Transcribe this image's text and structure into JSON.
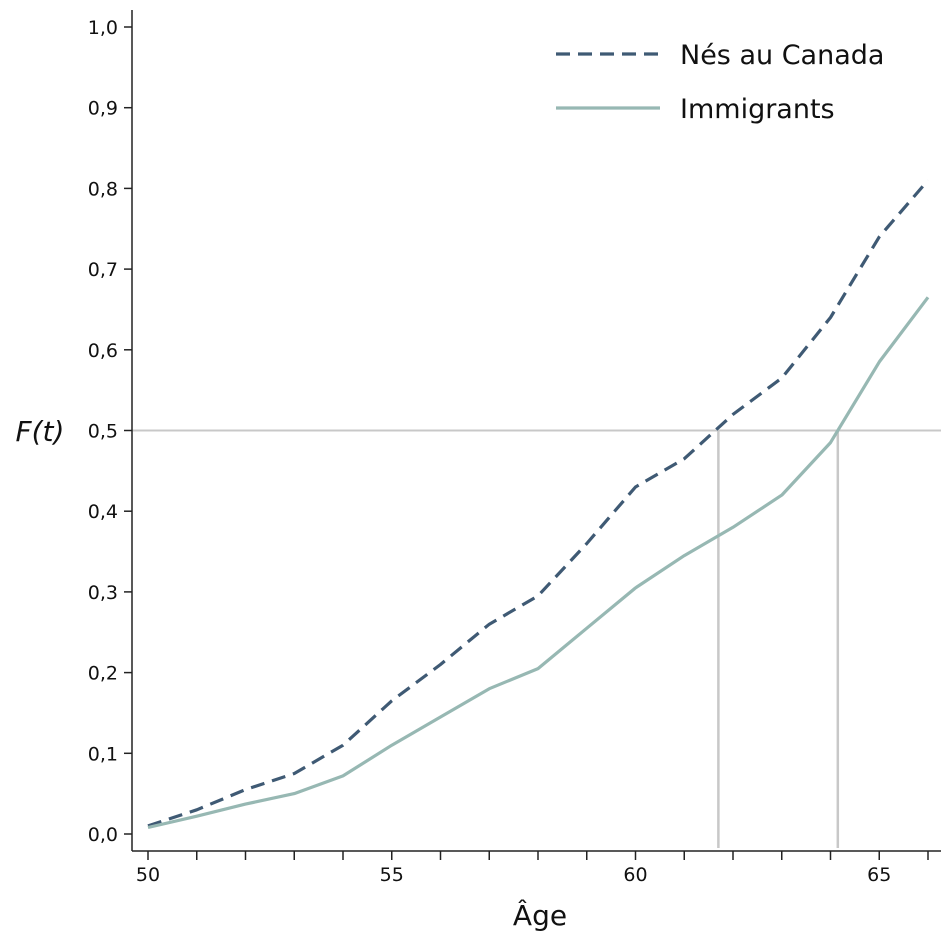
{
  "chart_data": {
    "type": "line",
    "xlabel": "Âge",
    "ylabel": "F(t)",
    "xlim": [
      49.6,
      66.2
    ],
    "ylim": [
      0,
      1.0
    ],
    "x_ticks": [
      {
        "value": 50,
        "label": "50"
      },
      {
        "value": 55,
        "label": "55"
      },
      {
        "value": 60,
        "label": "60"
      },
      {
        "value": 65,
        "label": "65"
      }
    ],
    "x_minor_ticks": [
      50,
      51,
      52,
      53,
      54,
      55,
      56,
      57,
      58,
      59,
      60,
      61,
      62,
      63,
      64,
      65,
      66
    ],
    "y_ticks": [
      {
        "value": 0.0,
        "label": "0,0"
      },
      {
        "value": 0.1,
        "label": "0,1"
      },
      {
        "value": 0.2,
        "label": "0,2"
      },
      {
        "value": 0.3,
        "label": "0,3"
      },
      {
        "value": 0.4,
        "label": "0,4"
      },
      {
        "value": 0.5,
        "label": "0,5"
      },
      {
        "value": 0.6,
        "label": "0,6"
      },
      {
        "value": 0.7,
        "label": "0,7"
      },
      {
        "value": 0.8,
        "label": "0,8"
      },
      {
        "value": 0.9,
        "label": "0,9"
      },
      {
        "value": 1.0,
        "label": "1,0"
      }
    ],
    "grid": false,
    "legend_position": "top-right",
    "series": [
      {
        "name": "Nés au Canada",
        "style": "dashed",
        "color": "#3f5a74",
        "x": [
          50,
          51,
          52,
          53,
          54,
          55,
          56,
          57,
          58,
          59,
          60,
          61,
          62,
          63,
          64,
          65,
          66
        ],
        "y": [
          0.01,
          0.03,
          0.055,
          0.075,
          0.11,
          0.165,
          0.21,
          0.26,
          0.295,
          0.36,
          0.43,
          0.465,
          0.52,
          0.565,
          0.64,
          0.74,
          0.81
        ]
      },
      {
        "name": "Immigrants",
        "style": "solid",
        "color": "#97b8b3",
        "x": [
          50,
          51,
          52,
          53,
          54,
          55,
          56,
          57,
          58,
          59,
          60,
          61,
          62,
          63,
          64,
          65,
          66
        ],
        "y": [
          0.008,
          0.022,
          0.037,
          0.05,
          0.072,
          0.11,
          0.145,
          0.18,
          0.205,
          0.255,
          0.305,
          0.345,
          0.38,
          0.42,
          0.485,
          0.585,
          0.665
        ]
      }
    ],
    "reference_lines": {
      "y": 0.5,
      "x": [
        61.7,
        64.15
      ],
      "color": "#c8c8c8"
    }
  }
}
